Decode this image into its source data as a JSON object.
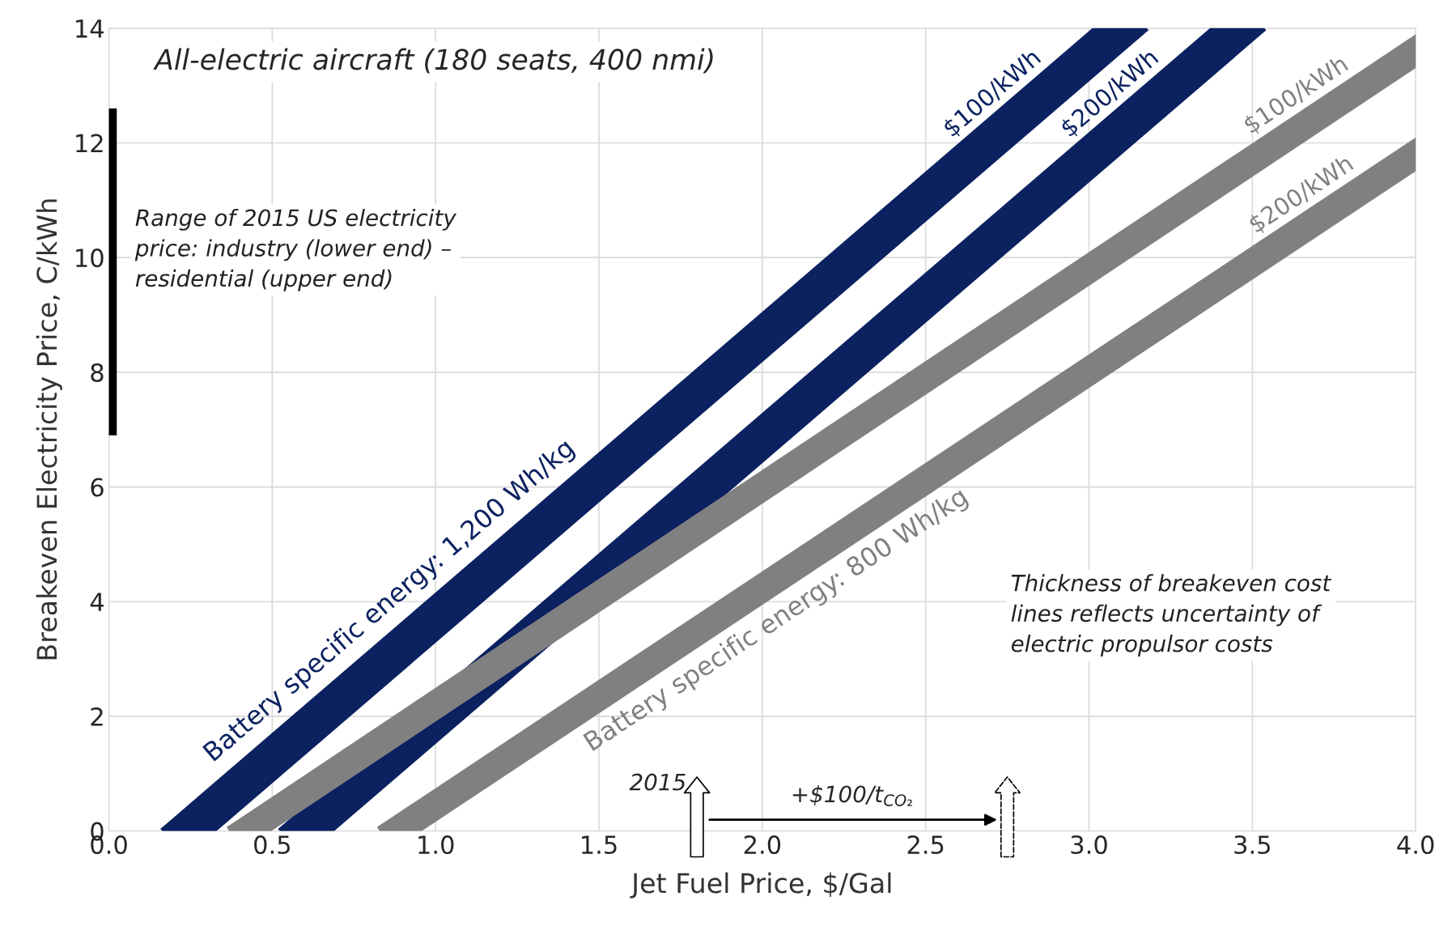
{
  "chart_data": {
    "type": "line",
    "title": "All-electric aircraft (180 seats, 400 nmi)",
    "xlabel": "Jet Fuel Price, $/Gal",
    "ylabel": "Breakeven Electricity Price, C/kWh",
    "xlim": [
      0.0,
      4.0
    ],
    "ylim": [
      0,
      14
    ],
    "xticks": [
      {
        "value": 0,
        "label": "0.0"
      },
      0.5,
      {
        "value": 1,
        "label": "1.0"
      },
      1.5,
      {
        "value": 2,
        "label": "2.0"
      },
      2.5,
      {
        "value": 3,
        "label": "3.0"
      },
      3.5,
      {
        "value": 4,
        "label": "4.0"
      }
    ],
    "yticks": [
      0,
      2,
      4,
      6,
      8,
      10,
      12,
      14
    ],
    "grid": true,
    "legend": false,
    "marker": "none",
    "line_style": "solid",
    "series": [
      {
        "name": "$100/kWh",
        "color": "#0b2160",
        "x": [
          0.24,
          3.1
        ],
        "values": [
          0,
          14
        ]
      },
      {
        "name": "$200/kWh",
        "color": "#0b2160",
        "x": [
          0.6,
          3.46
        ],
        "values": [
          0,
          14
        ]
      },
      {
        "name": "$100/kWh",
        "color": "#808080",
        "x": [
          0.42,
          4.0
        ],
        "values": [
          0,
          13.6
        ]
      },
      {
        "name": "$200/kWh",
        "color": "#808080",
        "x": [
          0.88,
          4.0
        ],
        "values": [
          0,
          11.8
        ]
      },
      {
        "color": "#000000",
        "x": [
          0.0,
          0.0
        ],
        "values": [
          6.9,
          12.6
        ]
      }
    ],
    "annotations": [
      "Range of 2015 US electricity price: industry (lower end) – residential (upper end)",
      "Thickness of breakeven cost lines reflects uncertainty of electric propulsor costs",
      "Battery specific energy: 1,200 Wh/kg",
      "Battery specific energy: 800 Wh/kg",
      "2015",
      "+$100/t$_{CO₂}$"
    ]
  }
}
